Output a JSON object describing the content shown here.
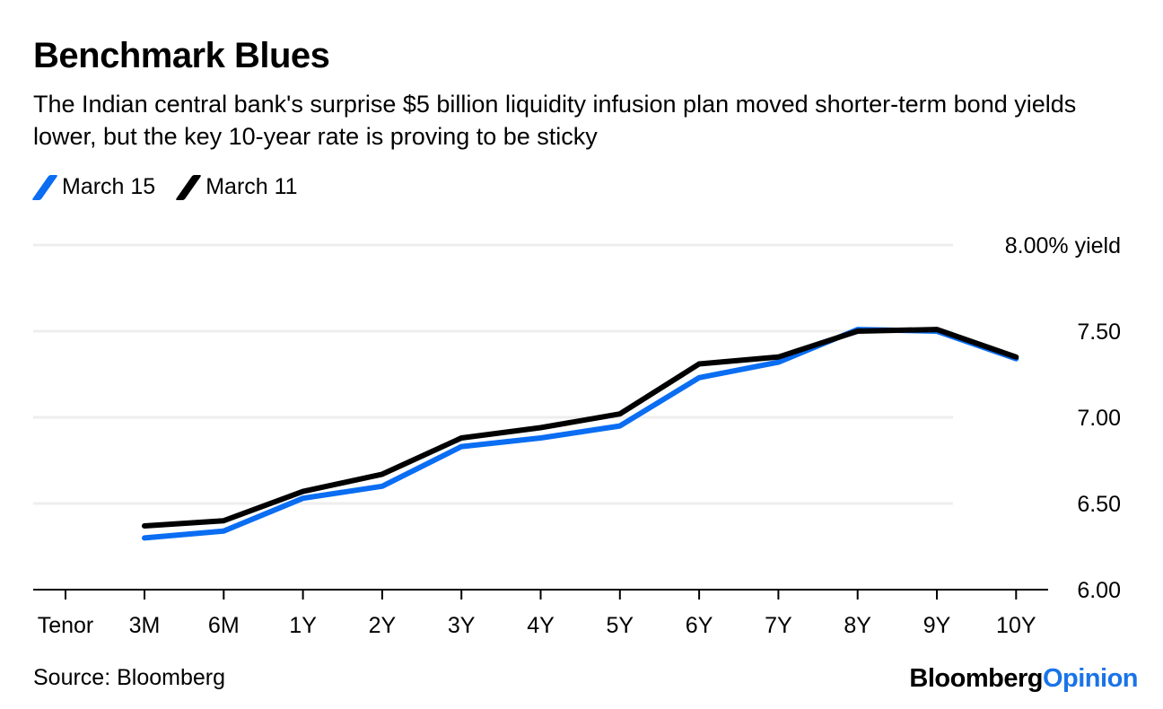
{
  "header": {
    "title": "Benchmark Blues",
    "subtitle": "The Indian central bank's surprise $5 billion liquidity infusion plan moved shorter-term bond yields lower, but the key 10-year rate is proving to be sticky"
  },
  "footer": {
    "source": "Source: Bloomberg",
    "brand_main": "Bloomberg",
    "brand_accent": "Opinion"
  },
  "colors": {
    "march15": "#0a6df2",
    "march11": "#000000",
    "grid": "#eeeeee",
    "axis": "#000000",
    "brand_accent": "#1a73e8"
  },
  "chart_data": {
    "type": "line",
    "title": "Benchmark Blues",
    "xlabel": "Tenor",
    "ylabel": "yield",
    "categories": [
      "3M",
      "6M",
      "1Y",
      "2Y",
      "3Y",
      "4Y",
      "5Y",
      "6Y",
      "7Y",
      "8Y",
      "9Y",
      "10Y"
    ],
    "series": [
      {
        "name": "March 15",
        "color": "#0a6df2",
        "values": [
          6.3,
          6.34,
          6.53,
          6.6,
          6.83,
          6.88,
          6.95,
          7.23,
          7.32,
          7.51,
          7.5,
          7.34
        ]
      },
      {
        "name": "March 11",
        "color": "#000000",
        "values": [
          6.37,
          6.4,
          6.57,
          6.67,
          6.88,
          6.94,
          7.02,
          7.31,
          7.35,
          7.5,
          7.51,
          7.35
        ]
      }
    ],
    "ylim": [
      6.0,
      8.0
    ],
    "yticks": [
      6.0,
      6.5,
      7.0,
      7.5,
      8.0
    ],
    "ytick_labels": [
      "6.00",
      "6.50",
      "7.00",
      "7.50",
      "8.00% yield"
    ],
    "y_axis_position": "right",
    "grid": true,
    "legend_position": "top-left"
  }
}
